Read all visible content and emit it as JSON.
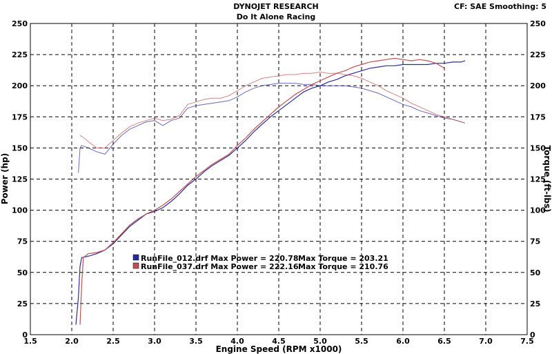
{
  "header": {
    "title": "DYNOJET RESEARCH",
    "subtitle": "Do It Alone Racing",
    "settings": "CF: SAE  Smoothing: 5"
  },
  "chart_data": {
    "type": "line",
    "xlabel": "Engine Speed (RPM x1000)",
    "ylabel_left": "Power (hp)",
    "ylabel_right": "Torque (ft-lbs)",
    "xlim": [
      1.5,
      7.5
    ],
    "ylim": [
      0,
      250
    ],
    "x_ticks": [
      "1.5",
      "2.0",
      "2.5",
      "3.0",
      "3.5",
      "4.0",
      "4.5",
      "5.0",
      "5.5",
      "6.0",
      "6.5",
      "7.0",
      "7.5"
    ],
    "y_ticks": [
      "0",
      "25",
      "50",
      "75",
      "100",
      "125",
      "150",
      "175",
      "200",
      "225",
      "250"
    ],
    "grid": true,
    "series": [
      {
        "name": "RunFile_012.drf",
        "color": "#2a2a9e",
        "max_power": "220.78",
        "max_torque": "203.21",
        "power": [
          [
            2.05,
            8
          ],
          [
            2.08,
            30
          ],
          [
            2.1,
            55
          ],
          [
            2.12,
            62
          ],
          [
            2.2,
            63
          ],
          [
            2.3,
            65
          ],
          [
            2.4,
            68
          ],
          [
            2.5,
            73
          ],
          [
            2.6,
            80
          ],
          [
            2.7,
            87
          ],
          [
            2.8,
            92
          ],
          [
            2.9,
            97
          ],
          [
            3.0,
            99
          ],
          [
            3.1,
            102
          ],
          [
            3.2,
            107
          ],
          [
            3.3,
            113
          ],
          [
            3.4,
            120
          ],
          [
            3.5,
            125
          ],
          [
            3.6,
            131
          ],
          [
            3.7,
            136
          ],
          [
            3.8,
            140
          ],
          [
            3.9,
            144
          ],
          [
            4.0,
            150
          ],
          [
            4.1,
            156
          ],
          [
            4.2,
            163
          ],
          [
            4.3,
            169
          ],
          [
            4.4,
            175
          ],
          [
            4.5,
            180
          ],
          [
            4.6,
            185
          ],
          [
            4.7,
            190
          ],
          [
            4.8,
            195
          ],
          [
            4.9,
            198
          ],
          [
            5.0,
            200
          ],
          [
            5.1,
            203
          ],
          [
            5.2,
            205
          ],
          [
            5.3,
            208
          ],
          [
            5.4,
            210
          ],
          [
            5.5,
            212
          ],
          [
            5.6,
            214
          ],
          [
            5.7,
            215
          ],
          [
            5.8,
            216
          ],
          [
            5.9,
            216
          ],
          [
            6.0,
            217
          ],
          [
            6.1,
            217
          ],
          [
            6.2,
            217
          ],
          [
            6.3,
            217
          ],
          [
            6.4,
            218
          ],
          [
            6.5,
            218
          ],
          [
            6.6,
            219
          ],
          [
            6.7,
            219
          ],
          [
            6.75,
            220
          ]
        ],
        "torque": [
          [
            2.08,
            130
          ],
          [
            2.1,
            150
          ],
          [
            2.12,
            152
          ],
          [
            2.2,
            150
          ],
          [
            2.3,
            147
          ],
          [
            2.4,
            145
          ],
          [
            2.5,
            153
          ],
          [
            2.6,
            160
          ],
          [
            2.7,
            165
          ],
          [
            2.8,
            168
          ],
          [
            2.9,
            171
          ],
          [
            3.0,
            172
          ],
          [
            3.1,
            168
          ],
          [
            3.2,
            172
          ],
          [
            3.3,
            174
          ],
          [
            3.4,
            182
          ],
          [
            3.5,
            184
          ],
          [
            3.6,
            185
          ],
          [
            3.7,
            186
          ],
          [
            3.8,
            187
          ],
          [
            3.9,
            188
          ],
          [
            4.0,
            191
          ],
          [
            4.1,
            195
          ],
          [
            4.2,
            198
          ],
          [
            4.3,
            200
          ],
          [
            4.4,
            201
          ],
          [
            4.5,
            202
          ],
          [
            4.6,
            202
          ],
          [
            4.7,
            202
          ],
          [
            4.8,
            201
          ],
          [
            4.9,
            201
          ],
          [
            5.0,
            200
          ],
          [
            5.1,
            200
          ],
          [
            5.2,
            200
          ],
          [
            5.3,
            200
          ],
          [
            5.4,
            199
          ],
          [
            5.5,
            198
          ],
          [
            5.6,
            196
          ],
          [
            5.7,
            194
          ],
          [
            5.8,
            191
          ],
          [
            5.9,
            188
          ],
          [
            6.0,
            185
          ],
          [
            6.1,
            183
          ],
          [
            6.2,
            180
          ],
          [
            6.3,
            178
          ],
          [
            6.4,
            176
          ],
          [
            6.5,
            174
          ],
          [
            6.6,
            173
          ],
          [
            6.7,
            171
          ],
          [
            6.75,
            170
          ]
        ]
      },
      {
        "name": "RunFile_037.drf",
        "color": "#c05050",
        "max_power": "222.16",
        "max_torque": "210.76",
        "power": [
          [
            2.1,
            8
          ],
          [
            2.12,
            40
          ],
          [
            2.14,
            62
          ],
          [
            2.2,
            65
          ],
          [
            2.3,
            66
          ],
          [
            2.4,
            68
          ],
          [
            2.5,
            74
          ],
          [
            2.6,
            81
          ],
          [
            2.7,
            88
          ],
          [
            2.8,
            93
          ],
          [
            2.9,
            97
          ],
          [
            3.0,
            100
          ],
          [
            3.1,
            104
          ],
          [
            3.2,
            109
          ],
          [
            3.3,
            115
          ],
          [
            3.4,
            121
          ],
          [
            3.5,
            127
          ],
          [
            3.6,
            132
          ],
          [
            3.7,
            137
          ],
          [
            3.8,
            141
          ],
          [
            3.9,
            145
          ],
          [
            4.0,
            152
          ],
          [
            4.1,
            158
          ],
          [
            4.2,
            165
          ],
          [
            4.3,
            171
          ],
          [
            4.4,
            177
          ],
          [
            4.5,
            183
          ],
          [
            4.6,
            188
          ],
          [
            4.7,
            193
          ],
          [
            4.8,
            197
          ],
          [
            4.9,
            201
          ],
          [
            5.0,
            204
          ],
          [
            5.1,
            207
          ],
          [
            5.2,
            210
          ],
          [
            5.3,
            212
          ],
          [
            5.4,
            215
          ],
          [
            5.5,
            217
          ],
          [
            5.6,
            219
          ],
          [
            5.7,
            220
          ],
          [
            5.8,
            221
          ],
          [
            5.9,
            222
          ],
          [
            6.0,
            221
          ],
          [
            6.1,
            220
          ],
          [
            6.2,
            221
          ],
          [
            6.3,
            220
          ],
          [
            6.4,
            218
          ],
          [
            6.5,
            214
          ]
        ],
        "torque": [
          [
            2.1,
            160
          ],
          [
            2.15,
            158
          ],
          [
            2.2,
            155
          ],
          [
            2.3,
            150
          ],
          [
            2.4,
            150
          ],
          [
            2.5,
            156
          ],
          [
            2.6,
            162
          ],
          [
            2.7,
            167
          ],
          [
            2.8,
            170
          ],
          [
            2.9,
            172
          ],
          [
            3.0,
            174
          ],
          [
            3.1,
            172
          ],
          [
            3.2,
            173
          ],
          [
            3.3,
            176
          ],
          [
            3.4,
            185
          ],
          [
            3.5,
            187
          ],
          [
            3.6,
            189
          ],
          [
            3.7,
            190
          ],
          [
            3.8,
            190
          ],
          [
            3.9,
            192
          ],
          [
            4.0,
            196
          ],
          [
            4.1,
            200
          ],
          [
            4.2,
            203
          ],
          [
            4.3,
            206
          ],
          [
            4.4,
            207
          ],
          [
            4.5,
            208
          ],
          [
            4.6,
            209
          ],
          [
            4.7,
            209
          ],
          [
            4.8,
            210
          ],
          [
            4.9,
            210
          ],
          [
            5.0,
            211
          ],
          [
            5.1,
            210
          ],
          [
            5.2,
            210
          ],
          [
            5.3,
            209
          ],
          [
            5.4,
            208
          ],
          [
            5.5,
            206
          ],
          [
            5.6,
            203
          ],
          [
            5.7,
            200
          ],
          [
            5.8,
            196
          ],
          [
            5.9,
            193
          ],
          [
            6.0,
            190
          ],
          [
            6.1,
            186
          ],
          [
            6.2,
            183
          ],
          [
            6.3,
            180
          ],
          [
            6.4,
            177
          ],
          [
            6.5,
            175
          ],
          [
            6.6,
            173
          ],
          [
            6.7,
            171
          ],
          [
            6.75,
            170
          ]
        ]
      }
    ],
    "legend": [
      {
        "file": "RunFile_012.drf",
        "power_label": "Max Power =",
        "power": "220.78",
        "torque_label": "Max Torque =",
        "torque": "203.21",
        "color": "#2a2a9e"
      },
      {
        "file": "RunFile_037.drf",
        "power_label": "Max Power =",
        "power": "222.16",
        "torque_label": "Max Torque =",
        "torque": "210.76",
        "color": "#c05050"
      }
    ]
  }
}
